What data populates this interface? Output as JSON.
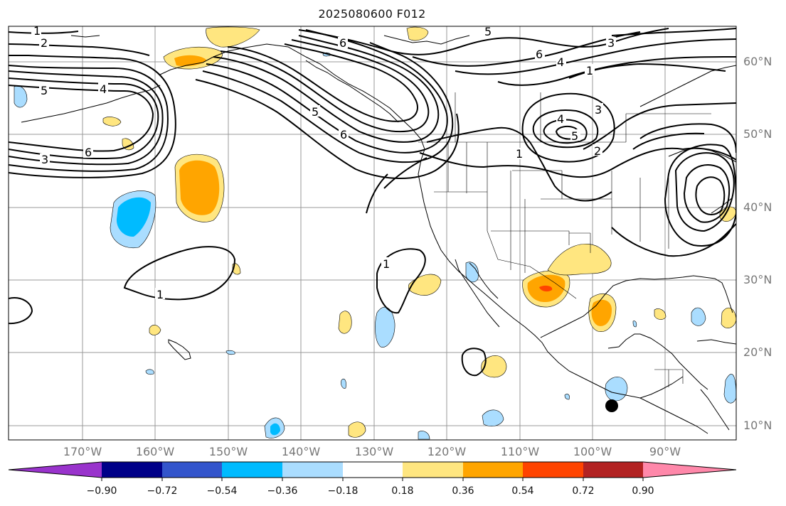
{
  "title": "2025080600 F012",
  "lat_labels": [
    "60°N",
    "50°N",
    "40°N",
    "30°N",
    "20°N",
    "10°N"
  ],
  "lon_labels": [
    "170°W",
    "160°W",
    "150°W",
    "140°W",
    "130°W",
    "120°W",
    "110°W",
    "100°W",
    "90°W"
  ],
  "contour_labels": [
    "1",
    "2",
    "3",
    "4",
    "5",
    "6"
  ],
  "colorbar": {
    "ticks": [
      "−0.90",
      "−0.72",
      "−0.54",
      "−0.36",
      "−0.18",
      "0.18",
      "0.36",
      "0.54",
      "0.72",
      "0.90"
    ],
    "colors": [
      "#9933cc",
      "#000088",
      "#3355cc",
      "#00bbff",
      "#aaddff",
      "#ffffff",
      "#ffe680",
      "#ffa500",
      "#ff4400",
      "#b22222",
      "#ff88aa"
    ]
  }
}
